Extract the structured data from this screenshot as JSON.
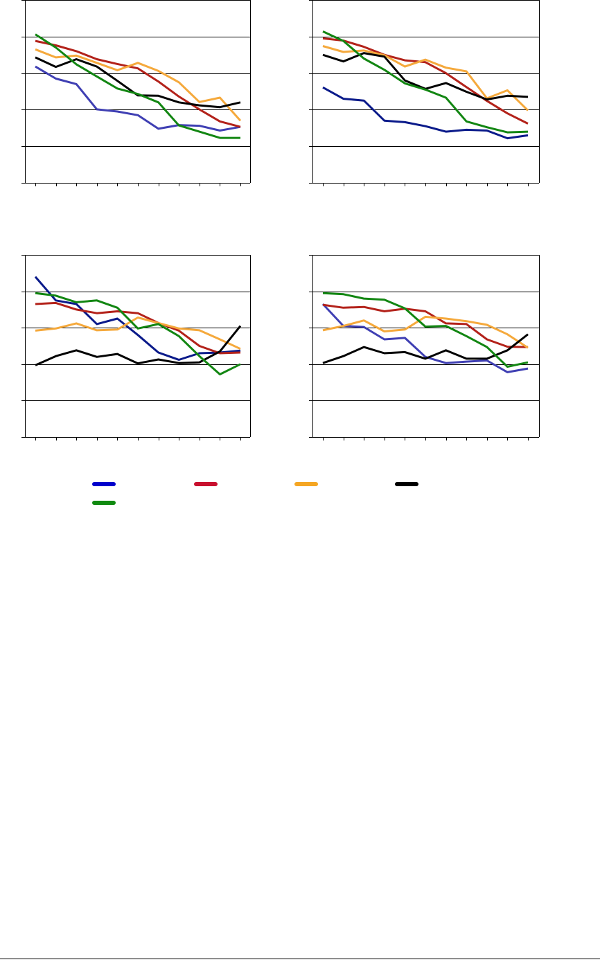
{
  "colors": {
    "axis": "#000000",
    "gridline": "#000000",
    "legend_key": [
      "#0000cc",
      "#c8102e",
      "#f5a623",
      "#000000",
      "#108a10"
    ]
  },
  "chart_data": [
    {
      "type": "line",
      "title": "",
      "xlabel": "",
      "ylabel": "",
      "ylim": [
        0,
        5
      ],
      "grid": true,
      "x": [
        1,
        2,
        3,
        4,
        5,
        6,
        7,
        8,
        9,
        10,
        11
      ],
      "series": [
        {
          "color": "#3f3fb3",
          "values": [
            3.18,
            2.85,
            2.7,
            2.01,
            1.95,
            1.85,
            1.48,
            1.58,
            1.56,
            1.43,
            1.53
          ]
        },
        {
          "color": "#b3221a",
          "values": [
            3.88,
            3.76,
            3.6,
            3.38,
            3.25,
            3.13,
            2.77,
            2.36,
            2.01,
            1.68,
            1.53
          ]
        },
        {
          "color": "#f5a93c",
          "values": [
            3.65,
            3.43,
            3.48,
            3.28,
            3.08,
            3.28,
            3.06,
            2.75,
            2.21,
            2.33,
            1.7
          ]
        },
        {
          "color": "#000000",
          "values": [
            3.43,
            3.17,
            3.38,
            3.18,
            2.79,
            2.39,
            2.38,
            2.2,
            2.12,
            2.07,
            2.2
          ]
        },
        {
          "color": "#128612",
          "values": [
            4.06,
            3.7,
            3.24,
            2.91,
            2.58,
            2.43,
            2.2,
            1.57,
            1.4,
            1.23,
            1.23
          ]
        }
      ]
    },
    {
      "type": "line",
      "title": "",
      "xlabel": "",
      "ylabel": "",
      "ylim": [
        0,
        5
      ],
      "grid": true,
      "x": [
        1,
        2,
        3,
        4,
        5,
        6,
        7,
        8,
        9,
        10,
        11
      ],
      "series": [
        {
          "color": "#0a1a8a",
          "values": [
            2.61,
            2.3,
            2.25,
            1.7,
            1.66,
            1.55,
            1.4,
            1.45,
            1.43,
            1.22,
            1.3
          ]
        },
        {
          "color": "#b3221a",
          "values": [
            3.95,
            3.89,
            3.72,
            3.5,
            3.35,
            3.3,
            3.0,
            2.62,
            2.24,
            1.9,
            1.62
          ]
        },
        {
          "color": "#f5a93c",
          "values": [
            3.74,
            3.58,
            3.62,
            3.49,
            3.18,
            3.37,
            3.15,
            3.05,
            2.31,
            2.53,
            1.98
          ]
        },
        {
          "color": "#000000",
          "values": [
            3.5,
            3.32,
            3.55,
            3.45,
            2.8,
            2.57,
            2.73,
            2.49,
            2.28,
            2.38,
            2.35
          ]
        },
        {
          "color": "#128612",
          "values": [
            4.14,
            3.88,
            3.4,
            3.09,
            2.72,
            2.55,
            2.33,
            1.68,
            1.52,
            1.38,
            1.4
          ]
        }
      ]
    },
    {
      "type": "line",
      "title": "",
      "xlabel": "",
      "ylabel": "",
      "ylim": [
        0,
        5
      ],
      "grid": true,
      "x": [
        1,
        2,
        3,
        4,
        5,
        6,
        7,
        8,
        9,
        10,
        11
      ],
      "series": [
        {
          "color": "#0a1a8a",
          "values": [
            4.4,
            3.75,
            3.65,
            3.1,
            3.25,
            2.8,
            2.32,
            2.12,
            2.3,
            2.32,
            2.37
          ]
        },
        {
          "color": "#b3221a",
          "values": [
            3.65,
            3.68,
            3.5,
            3.4,
            3.45,
            3.4,
            3.13,
            2.92,
            2.5,
            2.3,
            2.32
          ]
        },
        {
          "color": "#f5a93c",
          "values": [
            2.92,
            2.98,
            3.12,
            2.93,
            2.95,
            3.28,
            3.13,
            2.98,
            2.93,
            2.68,
            2.42
          ]
        },
        {
          "color": "#000000",
          "values": [
            1.97,
            2.22,
            2.38,
            2.2,
            2.28,
            2.02,
            2.13,
            2.03,
            2.05,
            2.35,
            3.05
          ]
        },
        {
          "color": "#128612",
          "values": [
            3.95,
            3.88,
            3.7,
            3.75,
            3.55,
            2.98,
            3.1,
            2.77,
            2.22,
            1.72,
            2.0
          ]
        }
      ]
    },
    {
      "type": "line",
      "title": "",
      "xlabel": "",
      "ylabel": "",
      "ylim": [
        0,
        5
      ],
      "grid": true,
      "x": [
        1,
        2,
        3,
        4,
        5,
        6,
        7,
        8,
        9,
        10,
        11
      ],
      "series": [
        {
          "color": "#3f3fb3",
          "values": [
            3.65,
            3.05,
            3.02,
            2.68,
            2.72,
            2.2,
            2.03,
            2.07,
            2.1,
            1.78,
            1.88
          ]
        },
        {
          "color": "#b3221a",
          "values": [
            3.63,
            3.55,
            3.57,
            3.45,
            3.52,
            3.45,
            3.12,
            3.1,
            2.68,
            2.48,
            2.47
          ]
        },
        {
          "color": "#f5a93c",
          "values": [
            2.93,
            3.05,
            3.2,
            2.9,
            2.95,
            3.3,
            3.25,
            3.18,
            3.08,
            2.82,
            2.45
          ]
        },
        {
          "color": "#000000",
          "values": [
            2.03,
            2.22,
            2.47,
            2.3,
            2.33,
            2.15,
            2.38,
            2.15,
            2.15,
            2.38,
            2.82
          ]
        },
        {
          "color": "#128612",
          "values": [
            3.95,
            3.92,
            3.8,
            3.77,
            3.53,
            3.03,
            3.05,
            2.77,
            2.47,
            1.93,
            2.05
          ]
        }
      ]
    }
  ]
}
